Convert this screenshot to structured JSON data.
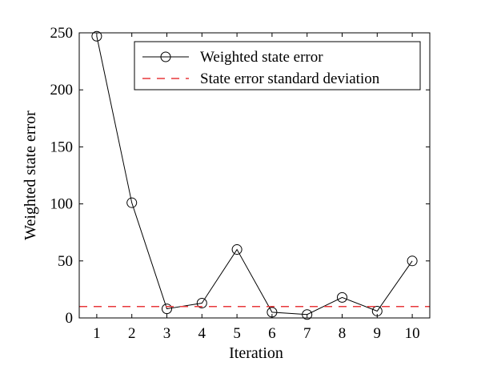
{
  "chart_data": {
    "type": "line",
    "title": "",
    "xlabel": "Iteration",
    "ylabel": "Weighted state error",
    "xlim": [
      0.5,
      10.5
    ],
    "ylim": [
      0,
      250
    ],
    "xticks": [
      1,
      2,
      3,
      4,
      5,
      6,
      7,
      8,
      9,
      10
    ],
    "yticks": [
      0,
      50,
      100,
      150,
      200,
      250
    ],
    "grid": false,
    "legend_position": "top-right",
    "series": [
      {
        "name": "Weighted state error",
        "style": "solid-line-circle-markers",
        "color": "#000000",
        "x": [
          1,
          2,
          3,
          4,
          5,
          6,
          7,
          8,
          9,
          10
        ],
        "y": [
          247,
          101,
          8,
          13,
          60,
          5,
          3,
          18,
          6,
          50
        ]
      },
      {
        "name": "State error standard deviation",
        "style": "dashed",
        "color": "#e8383b",
        "x": [
          0.5,
          10.5
        ],
        "y": [
          10,
          10
        ]
      }
    ]
  }
}
